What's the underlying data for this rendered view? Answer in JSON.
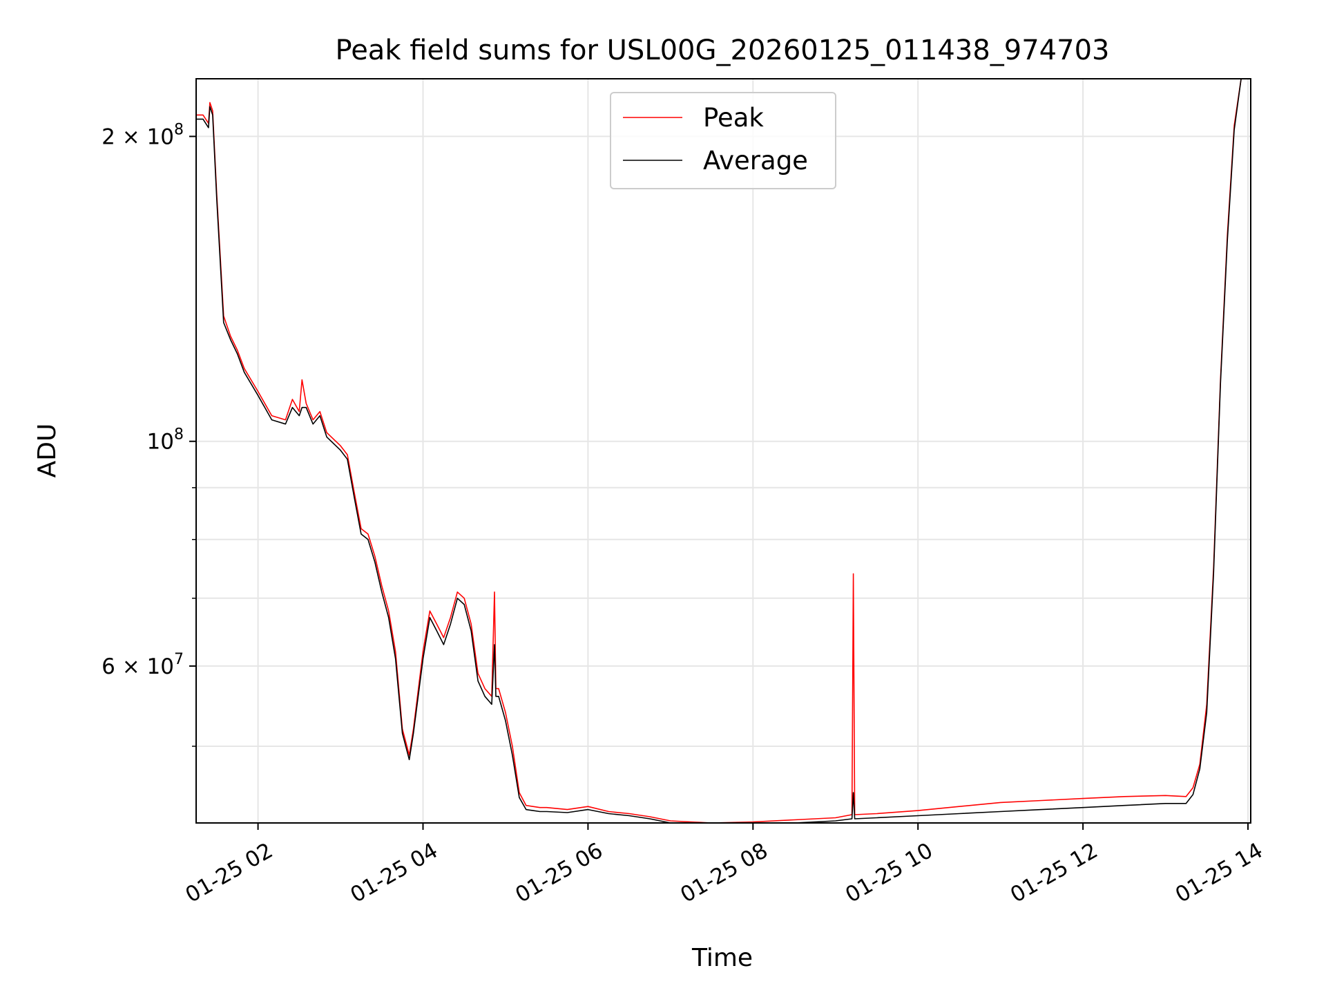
{
  "chart_data": {
    "type": "line",
    "title": "Peak field sums for USL00G_20260125_011438_974703",
    "xlabel": "Time",
    "ylabel": "ADU",
    "yscale": "log",
    "xlim": [
      "2026-01-25 01:15",
      "2026-01-25 14:02"
    ],
    "ylim": [
      42000000,
      228000000
    ],
    "grid": true,
    "legend": {
      "placement": "top-center"
    },
    "x_ticks": [
      "01-25 02",
      "01-25 04",
      "01-25 06",
      "01-25 08",
      "01-25 10",
      "01-25 12",
      "01-25 14"
    ],
    "y_major_ticks": [
      {
        "value": 60000000,
        "mantissa": "6",
        "exponent": "7"
      },
      {
        "value": 100000000,
        "mantissa": "",
        "exponent": "8"
      },
      {
        "value": 200000000,
        "mantissa": "2",
        "exponent": "8"
      }
    ],
    "series": [
      {
        "name": "Peak",
        "color": "#ff0000",
        "x": [
          "2026-01-25 01:15",
          "2026-01-25 01:20",
          "2026-01-25 01:24",
          "2026-01-25 01:25",
          "2026-01-25 01:27",
          "2026-01-25 01:30",
          "2026-01-25 01:35",
          "2026-01-25 01:40",
          "2026-01-25 01:45",
          "2026-01-25 01:50",
          "2026-01-25 02:00",
          "2026-01-25 02:10",
          "2026-01-25 02:20",
          "2026-01-25 02:25",
          "2026-01-25 02:30",
          "2026-01-25 02:32",
          "2026-01-25 02:35",
          "2026-01-25 02:40",
          "2026-01-25 02:45",
          "2026-01-25 02:50",
          "2026-01-25 03:00",
          "2026-01-25 03:05",
          "2026-01-25 03:10",
          "2026-01-25 03:15",
          "2026-01-25 03:20",
          "2026-01-25 03:25",
          "2026-01-25 03:30",
          "2026-01-25 03:35",
          "2026-01-25 03:40",
          "2026-01-25 03:45",
          "2026-01-25 03:50",
          "2026-01-25 03:53",
          "2026-01-25 04:00",
          "2026-01-25 04:05",
          "2026-01-25 04:10",
          "2026-01-25 04:15",
          "2026-01-25 04:20",
          "2026-01-25 04:25",
          "2026-01-25 04:30",
          "2026-01-25 04:35",
          "2026-01-25 04:40",
          "2026-01-25 04:45",
          "2026-01-25 04:50",
          "2026-01-25 04:52",
          "2026-01-25 04:53",
          "2026-01-25 04:55",
          "2026-01-25 05:00",
          "2026-01-25 05:05",
          "2026-01-25 05:10",
          "2026-01-25 05:15",
          "2026-01-25 05:20",
          "2026-01-25 05:25",
          "2026-01-25 05:30",
          "2026-01-25 05:45",
          "2026-01-25 06:00",
          "2026-01-25 06:15",
          "2026-01-25 06:30",
          "2026-01-25 06:45",
          "2026-01-25 07:00",
          "2026-01-25 07:15",
          "2026-01-25 07:30",
          "2026-01-25 08:00",
          "2026-01-25 08:30",
          "2026-01-25 09:00",
          "2026-01-25 09:12",
          "2026-01-25 09:13",
          "2026-01-25 09:14",
          "2026-01-25 09:30",
          "2026-01-25 10:00",
          "2026-01-25 10:30",
          "2026-01-25 11:00",
          "2026-01-25 11:30",
          "2026-01-25 12:00",
          "2026-01-25 12:30",
          "2026-01-25 13:00",
          "2026-01-25 13:15",
          "2026-01-25 13:20",
          "2026-01-25 13:25",
          "2026-01-25 13:30",
          "2026-01-25 13:35",
          "2026-01-25 13:40",
          "2026-01-25 13:45",
          "2026-01-25 13:50",
          "2026-01-25 13:55",
          "2026-01-25 14:00"
        ],
        "y": [
          210000000,
          210000000,
          206000000,
          216000000,
          212000000,
          175000000,
          133000000,
          127000000,
          123000000,
          118000000,
          112000000,
          106000000,
          105000000,
          110000000,
          107000000,
          115000000,
          109000000,
          105000000,
          107000000,
          102000000,
          99000000,
          97000000,
          89000000,
          82000000,
          81000000,
          77000000,
          72000000,
          68000000,
          62000000,
          52000000,
          49000000,
          52000000,
          62000000,
          68000000,
          66000000,
          64000000,
          67000000,
          71000000,
          70000000,
          66000000,
          59000000,
          57000000,
          56000000,
          71000000,
          57000000,
          57000000,
          54000000,
          50000000,
          45000000,
          43700000,
          43600000,
          43500000,
          43500000,
          43300000,
          43600000,
          43100000,
          42900000,
          42600000,
          42200000,
          42100000,
          42000000,
          42100000,
          42300000,
          42500000,
          42800000,
          74000000,
          42800000,
          42900000,
          43200000,
          43600000,
          44000000,
          44200000,
          44400000,
          44600000,
          44700000,
          44600000,
          45500000,
          48000000,
          55000000,
          75000000,
          115000000,
          160000000,
          205000000,
          228000000,
          228000000
        ]
      },
      {
        "name": "Average",
        "color": "#000000",
        "x": [
          "2026-01-25 01:15",
          "2026-01-25 01:20",
          "2026-01-25 01:24",
          "2026-01-25 01:25",
          "2026-01-25 01:27",
          "2026-01-25 01:30",
          "2026-01-25 01:35",
          "2026-01-25 01:40",
          "2026-01-25 01:45",
          "2026-01-25 01:50",
          "2026-01-25 02:00",
          "2026-01-25 02:10",
          "2026-01-25 02:20",
          "2026-01-25 02:25",
          "2026-01-25 02:30",
          "2026-01-25 02:32",
          "2026-01-25 02:35",
          "2026-01-25 02:40",
          "2026-01-25 02:45",
          "2026-01-25 02:50",
          "2026-01-25 03:00",
          "2026-01-25 03:05",
          "2026-01-25 03:10",
          "2026-01-25 03:15",
          "2026-01-25 03:20",
          "2026-01-25 03:25",
          "2026-01-25 03:30",
          "2026-01-25 03:35",
          "2026-01-25 03:40",
          "2026-01-25 03:45",
          "2026-01-25 03:50",
          "2026-01-25 03:53",
          "2026-01-25 04:00",
          "2026-01-25 04:05",
          "2026-01-25 04:10",
          "2026-01-25 04:15",
          "2026-01-25 04:20",
          "2026-01-25 04:25",
          "2026-01-25 04:30",
          "2026-01-25 04:35",
          "2026-01-25 04:40",
          "2026-01-25 04:45",
          "2026-01-25 04:50",
          "2026-01-25 04:52",
          "2026-01-25 04:53",
          "2026-01-25 04:55",
          "2026-01-25 05:00",
          "2026-01-25 05:05",
          "2026-01-25 05:10",
          "2026-01-25 05:15",
          "2026-01-25 05:20",
          "2026-01-25 05:25",
          "2026-01-25 05:30",
          "2026-01-25 05:45",
          "2026-01-25 06:00",
          "2026-01-25 06:15",
          "2026-01-25 06:30",
          "2026-01-25 06:45",
          "2026-01-25 07:00",
          "2026-01-25 07:15",
          "2026-01-25 07:30",
          "2026-01-25 08:00",
          "2026-01-25 08:30",
          "2026-01-25 09:00",
          "2026-01-25 09:12",
          "2026-01-25 09:13",
          "2026-01-25 09:14",
          "2026-01-25 09:30",
          "2026-01-25 10:00",
          "2026-01-25 10:30",
          "2026-01-25 11:00",
          "2026-01-25 11:30",
          "2026-01-25 12:00",
          "2026-01-25 12:30",
          "2026-01-25 13:00",
          "2026-01-25 13:15",
          "2026-01-25 13:20",
          "2026-01-25 13:25",
          "2026-01-25 13:30",
          "2026-01-25 13:35",
          "2026-01-25 13:40",
          "2026-01-25 13:45",
          "2026-01-25 13:50",
          "2026-01-25 13:55",
          "2026-01-25 14:00"
        ],
        "y": [
          208000000,
          208000000,
          204000000,
          214000000,
          210000000,
          173000000,
          131000000,
          126000000,
          122000000,
          117000000,
          111000000,
          105000000,
          104000000,
          108000000,
          106000000,
          108000000,
          108000000,
          104000000,
          106000000,
          101000000,
          98000000,
          96000000,
          88000000,
          81000000,
          80000000,
          76000000,
          71000000,
          67000000,
          61000000,
          51500000,
          48500000,
          51500000,
          61000000,
          67000000,
          65000000,
          63000000,
          66000000,
          70000000,
          69000000,
          65000000,
          58000000,
          56000000,
          55000000,
          63000000,
          56000000,
          56000000,
          53000000,
          49000000,
          44500000,
          43300000,
          43200000,
          43100000,
          43100000,
          43000000,
          43300000,
          42900000,
          42700000,
          42400000,
          42000000,
          41900000,
          41800000,
          41900000,
          42000000,
          42200000,
          42400000,
          45000000,
          42400000,
          42500000,
          42700000,
          42900000,
          43100000,
          43300000,
          43500000,
          43700000,
          43900000,
          43900000,
          44800000,
          47500000,
          54000000,
          74000000,
          114000000,
          158000000,
          203000000,
          228000000,
          228000000
        ]
      }
    ]
  }
}
